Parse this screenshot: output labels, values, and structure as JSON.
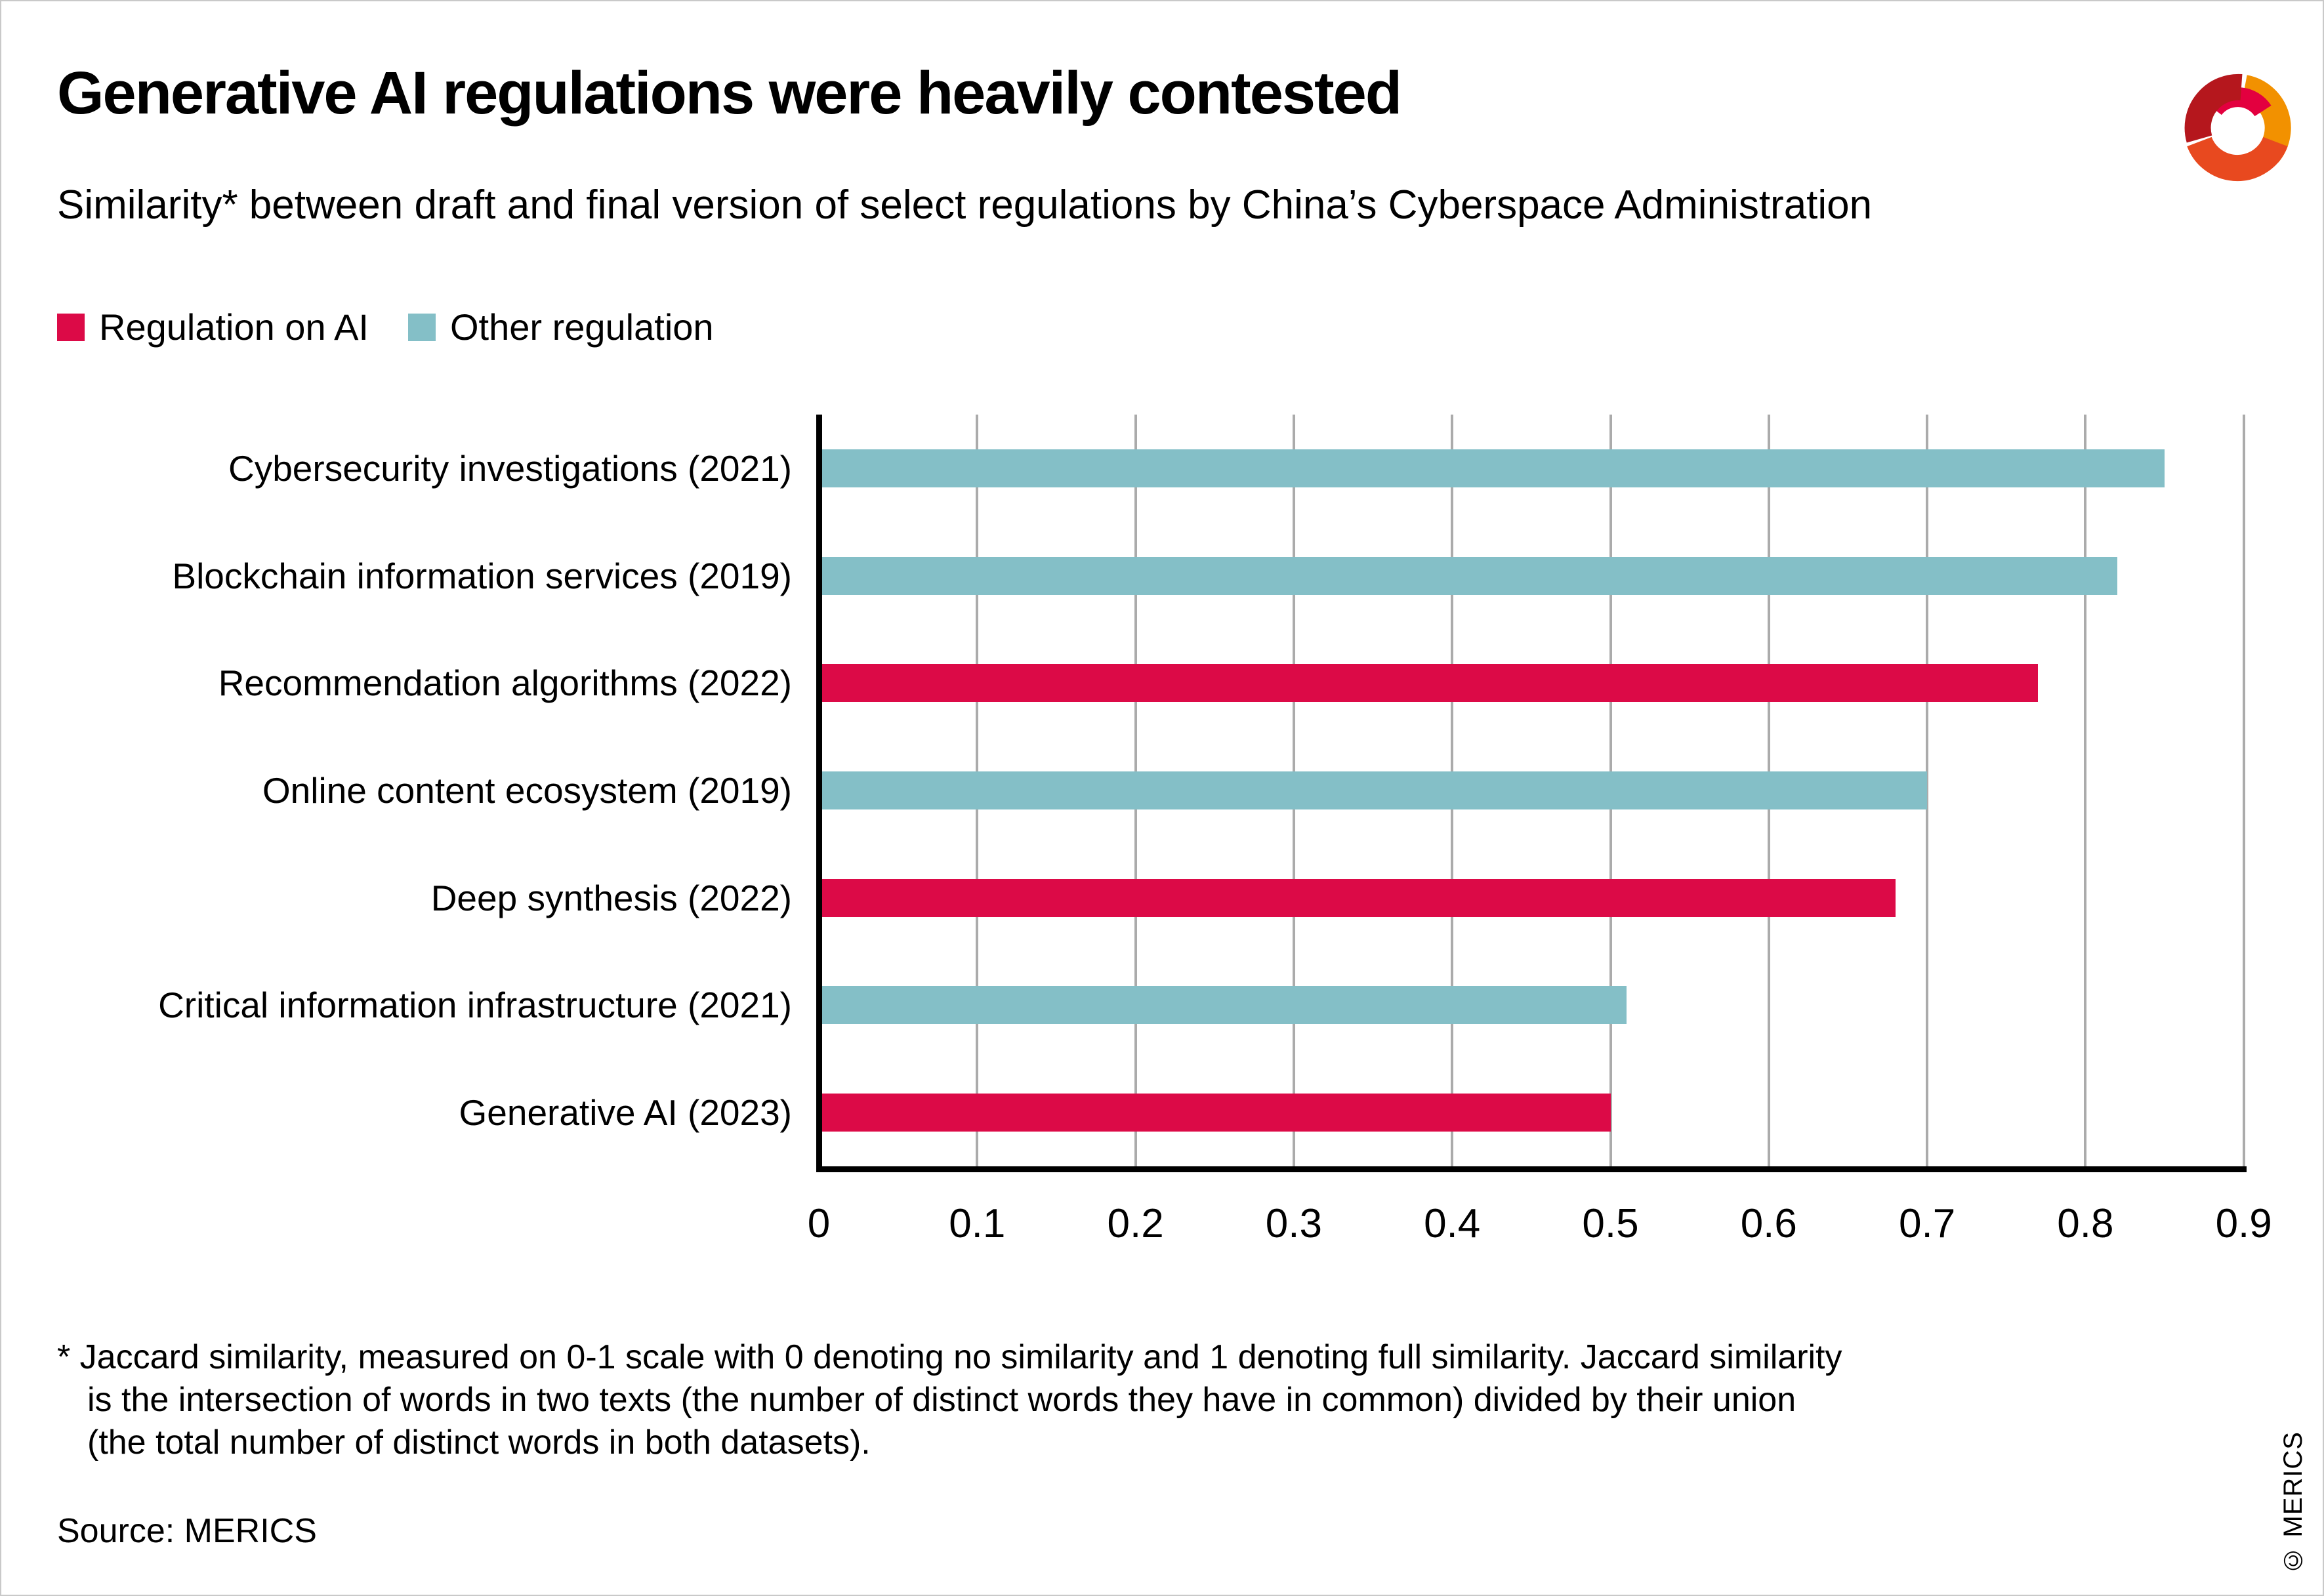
{
  "header": {
    "title": "Generative AI regulations were heavily contested",
    "subtitle": "Similarity* between draft and final version of select regulations by China’s Cyberspace Administration"
  },
  "legend": [
    {
      "label": "Regulation on AI",
      "color": "#DC0A47"
    },
    {
      "label": "Other regulation",
      "color": "#84BFC7"
    }
  ],
  "chart_data": {
    "type": "bar",
    "orientation": "horizontal",
    "title": "Similarity between draft and final version of select regulations by China's Cyberspace Administration",
    "categories": [
      "Cybersecurity investigations (2021)",
      "Blockchain information services (2019)",
      "Recommendation algorithms (2022)",
      "Online content ecosystem (2019)",
      "Deep synthesis (2022)",
      "Critical information infrastructure (2021)",
      "Generative AI (2023)"
    ],
    "values": [
      0.85,
      0.82,
      0.77,
      0.7,
      0.68,
      0.51,
      0.5
    ],
    "series_of_bar": [
      "other",
      "other",
      "ai",
      "other",
      "ai",
      "other",
      "ai"
    ],
    "series": [
      {
        "name": "Regulation on AI",
        "color": "#DC0A47"
      },
      {
        "name": "Other regulation",
        "color": "#84BFC7"
      }
    ],
    "xlabel": "",
    "ylabel": "",
    "xlim": [
      0,
      0.9
    ],
    "xticks": [
      0,
      0.1,
      0.2,
      0.3,
      0.4,
      0.5,
      0.6,
      0.7,
      0.8,
      0.9
    ],
    "grid": true,
    "gridline_color": "#ababab",
    "axis_color": "#000000",
    "legend_position": "top-left"
  },
  "footnote": {
    "lines": [
      "* Jaccard similarity, measured on 0-1 scale with 0 denoting no similarity and 1 denoting full similarity. Jaccard similarity",
      "is the intersection of words in two texts (the number of distinct words they have in common) divided by their union",
      "(the total number of distinct words in both datasets)."
    ]
  },
  "source": "Source: MERICS",
  "copyright": "© MERICS",
  "logo": {
    "name": "merics-logo",
    "colors": {
      "darkred": "#B5171D",
      "orange": "#F29100",
      "vermilion": "#E8491F",
      "crimson": "#E3003F"
    }
  }
}
